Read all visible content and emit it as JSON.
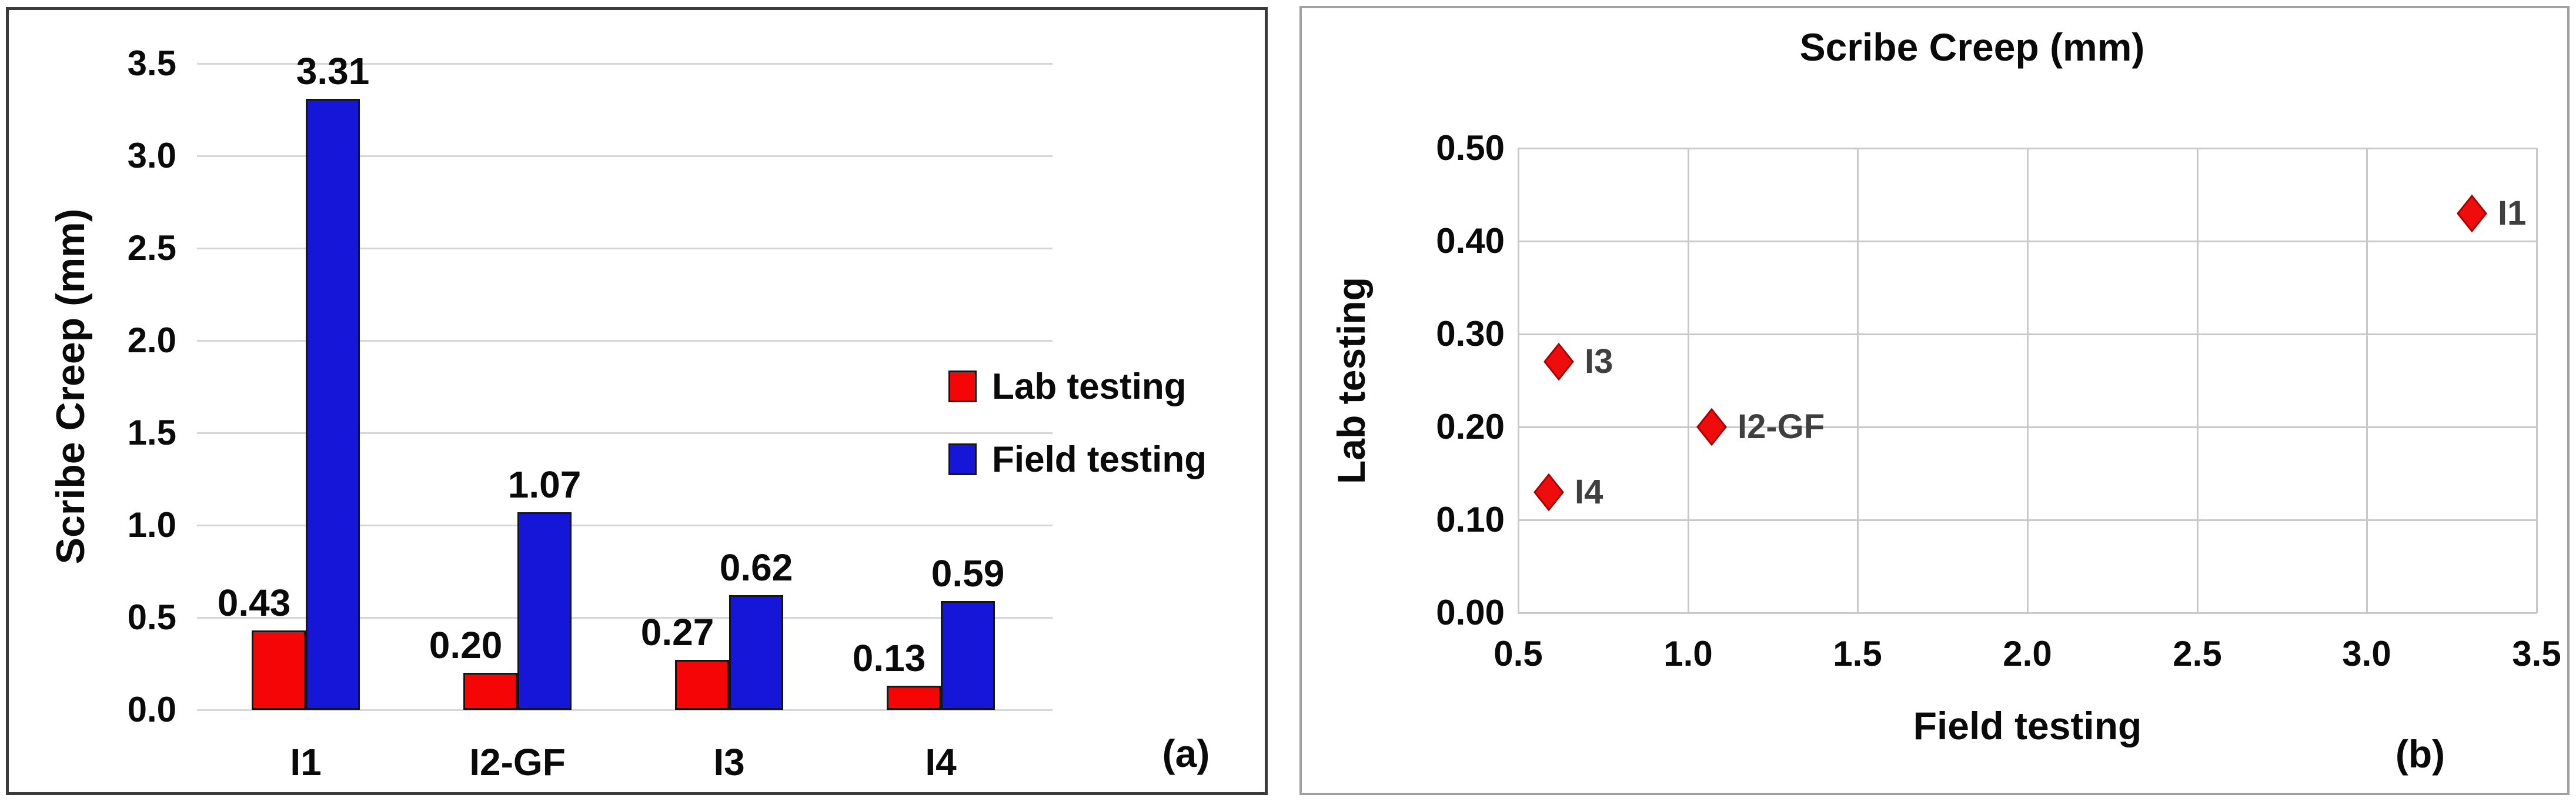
{
  "figure": {
    "panel_a_label": "(a)",
    "panel_b_label": "(b)"
  },
  "colors": {
    "lab_red": "#f50505",
    "field_blue": "#1616d9",
    "marker_fill": "#ee0c0c",
    "marker_stroke": "#a80000",
    "gridline_a": "#d6d6d6",
    "gridline_b": "#c9c9c9",
    "bar_outline": "#151515",
    "point_label": "#3f3f3f",
    "text": "#0a0a0a"
  },
  "chart_data": [
    {
      "type": "bar",
      "panel": "a",
      "title": "",
      "ylabel": "Scribe Creep (mm)",
      "categories": [
        "I1",
        "I2-GF",
        "I3",
        "I4"
      ],
      "series": [
        {
          "name": "Lab testing",
          "color": "#f50505",
          "values": [
            0.43,
            0.2,
            0.27,
            0.13
          ],
          "labels": [
            "0.43",
            "0.20",
            "0.27",
            "0.13"
          ]
        },
        {
          "name": "Field testing",
          "color": "#1616d9",
          "values": [
            3.31,
            1.07,
            0.62,
            0.59
          ],
          "labels": [
            "3.31",
            "1.07",
            "0.62",
            "0.59"
          ]
        }
      ],
      "ylim": [
        0,
        3.5
      ],
      "ytick_step": 0.5,
      "yticks": [
        "0.0",
        "0.5",
        "1.0",
        "1.5",
        "2.0",
        "2.5",
        "3.0",
        "3.5"
      ],
      "grid": true,
      "legend_position": "center-right"
    },
    {
      "type": "scatter",
      "panel": "b",
      "title": "Scribe Creep (mm)",
      "xlabel": "Field testing",
      "ylabel": "Lab testing",
      "xlim": [
        0.5,
        3.5
      ],
      "ylim": [
        0,
        0.5
      ],
      "xticks": [
        "0.5",
        "1.0",
        "1.5",
        "2.0",
        "2.5",
        "3.0",
        "3.5"
      ],
      "yticks": [
        "0.00",
        "0.10",
        "0.20",
        "0.30",
        "0.40",
        "0.50"
      ],
      "marker": "diamond",
      "points": [
        {
          "label": "I1",
          "x": 3.31,
          "y": 0.43
        },
        {
          "label": "I3",
          "x": 0.62,
          "y": 0.27
        },
        {
          "label": "I2-GF",
          "x": 1.07,
          "y": 0.2
        },
        {
          "label": "I4",
          "x": 0.59,
          "y": 0.13
        }
      ],
      "grid": true,
      "legend_position": "none"
    }
  ]
}
